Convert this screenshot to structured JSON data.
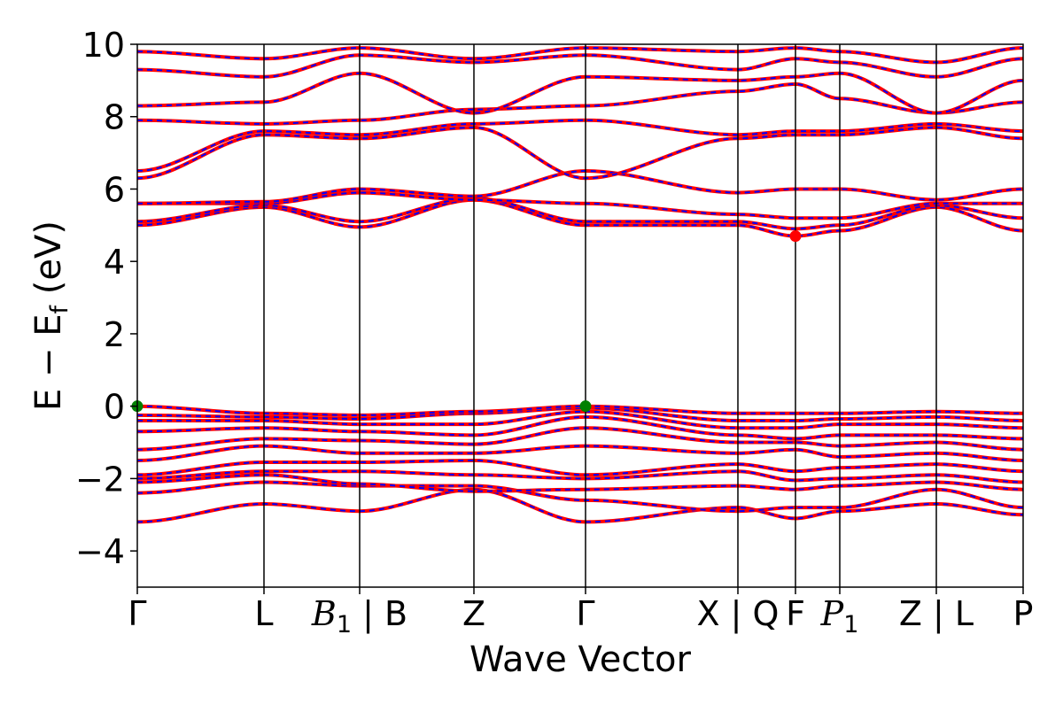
{
  "chart_data": {
    "type": "line",
    "xlabel": "Wave Vector",
    "ylabel": "E − E",
    "ylabel_sub": "f",
    "ylabel_unit": " (eV)",
    "ylim": [
      -5,
      10
    ],
    "yticks": [
      10,
      8,
      6,
      4,
      2,
      0,
      -2,
      -4
    ],
    "ytick_labels": [
      "10",
      "8",
      "6",
      "4",
      "2",
      "0",
      "−2",
      "−4"
    ],
    "xlim": [
      0,
      1
    ],
    "kpoints": [
      {
        "x": 0.0,
        "label": "Γ",
        "italic_base": "",
        "sub": ""
      },
      {
        "x": 0.143,
        "label": "L",
        "italic_base": "",
        "sub": ""
      },
      {
        "x": 0.251,
        "label": "",
        "italic_base": "B",
        "sub": "1",
        "suffix": " | B"
      },
      {
        "x": 0.38,
        "label": "Z",
        "italic_base": "",
        "sub": ""
      },
      {
        "x": 0.506,
        "label": "Γ",
        "italic_base": "",
        "sub": ""
      },
      {
        "x": 0.678,
        "label": "X | Q",
        "italic_base": "",
        "sub": ""
      },
      {
        "x": 0.743,
        "label": "F",
        "italic_base": "",
        "sub": ""
      },
      {
        "x": 0.793,
        "label": "",
        "italic_base": "P",
        "sub": "1",
        "suffix": ""
      },
      {
        "x": 0.902,
        "label": "Z | L",
        "italic_base": "",
        "sub": ""
      },
      {
        "x": 1.0,
        "label": "P",
        "italic_base": "",
        "sub": ""
      }
    ],
    "grid": false,
    "colors": {
      "spin_up": "#ff0000",
      "spin_down": "#0000ff",
      "vbm": "#008000",
      "cbm": "#ff0000",
      "kline": "#000000"
    },
    "series": [
      {
        "values": [
          [
            0.0,
            -3.2
          ],
          [
            0.143,
            -2.7
          ],
          [
            0.251,
            -2.9
          ],
          [
            0.38,
            -2.3
          ],
          [
            0.506,
            -3.2
          ],
          [
            0.678,
            -2.8
          ],
          [
            0.743,
            -3.1
          ],
          [
            0.793,
            -2.9
          ],
          [
            0.902,
            -2.7
          ],
          [
            1.0,
            -3.0
          ]
        ]
      },
      {
        "values": [
          [
            0.0,
            -2.4
          ],
          [
            0.143,
            -2.1
          ],
          [
            0.251,
            -2.2
          ],
          [
            0.38,
            -2.2
          ],
          [
            0.506,
            -2.6
          ],
          [
            0.678,
            -2.9
          ],
          [
            0.743,
            -2.8
          ],
          [
            0.793,
            -2.8
          ],
          [
            0.902,
            -2.3
          ],
          [
            1.0,
            -2.8
          ]
        ]
      },
      {
        "values": [
          [
            0.0,
            -2.1
          ],
          [
            0.143,
            -1.9
          ],
          [
            0.251,
            -2.15
          ],
          [
            0.38,
            -2.35
          ],
          [
            0.506,
            -2.3
          ],
          [
            0.678,
            -2.2
          ],
          [
            0.743,
            -2.3
          ],
          [
            0.793,
            -2.2
          ],
          [
            0.902,
            -2.1
          ],
          [
            1.0,
            -2.3
          ]
        ]
      },
      {
        "values": [
          [
            0.0,
            -2.0
          ],
          [
            0.143,
            -1.8
          ],
          [
            0.251,
            -1.8
          ],
          [
            0.38,
            -1.9
          ],
          [
            0.506,
            -2.0
          ],
          [
            0.678,
            -1.8
          ],
          [
            0.743,
            -2.05
          ],
          [
            0.793,
            -2.0
          ],
          [
            0.902,
            -1.9
          ],
          [
            1.0,
            -2.1
          ]
        ]
      },
      {
        "values": [
          [
            0.0,
            -1.9
          ],
          [
            0.143,
            -1.55
          ],
          [
            0.251,
            -1.55
          ],
          [
            0.38,
            -1.5
          ],
          [
            0.506,
            -1.9
          ],
          [
            0.678,
            -1.6
          ],
          [
            0.743,
            -1.8
          ],
          [
            0.793,
            -1.7
          ],
          [
            0.902,
            -1.6
          ],
          [
            1.0,
            -1.8
          ]
        ]
      },
      {
        "values": [
          [
            0.0,
            -1.5
          ],
          [
            0.143,
            -1.1
          ],
          [
            0.251,
            -1.3
          ],
          [
            0.38,
            -1.3
          ],
          [
            0.506,
            -1.1
          ],
          [
            0.678,
            -1.3
          ],
          [
            0.743,
            -1.2
          ],
          [
            0.793,
            -1.4
          ],
          [
            0.902,
            -1.3
          ],
          [
            1.0,
            -1.5
          ]
        ]
      },
      {
        "values": [
          [
            0.0,
            -1.2
          ],
          [
            0.143,
            -0.9
          ],
          [
            0.251,
            -0.95
          ],
          [
            0.38,
            -1.05
          ],
          [
            0.506,
            -0.6
          ],
          [
            0.678,
            -1.0
          ],
          [
            0.743,
            -1.0
          ],
          [
            0.793,
            -1.1
          ],
          [
            0.902,
            -1.0
          ],
          [
            1.0,
            -1.2
          ]
        ]
      },
      {
        "values": [
          [
            0.0,
            -0.7
          ],
          [
            0.143,
            -0.6
          ],
          [
            0.251,
            -0.7
          ],
          [
            0.38,
            -0.8
          ],
          [
            0.506,
            -0.3
          ],
          [
            0.678,
            -0.8
          ],
          [
            0.743,
            -0.9
          ],
          [
            0.793,
            -0.8
          ],
          [
            0.902,
            -0.8
          ],
          [
            1.0,
            -0.9
          ]
        ]
      },
      {
        "values": [
          [
            0.0,
            -0.4
          ],
          [
            0.143,
            -0.4
          ],
          [
            0.251,
            -0.5
          ],
          [
            0.38,
            -0.5
          ],
          [
            0.506,
            -0.15
          ],
          [
            0.678,
            -0.6
          ],
          [
            0.743,
            -0.6
          ],
          [
            0.793,
            -0.5
          ],
          [
            0.902,
            -0.5
          ],
          [
            1.0,
            -0.6
          ]
        ]
      },
      {
        "values": [
          [
            0.0,
            -0.25
          ],
          [
            0.143,
            -0.3
          ],
          [
            0.251,
            -0.35
          ],
          [
            0.38,
            -0.2
          ],
          [
            0.506,
            -0.05
          ],
          [
            0.678,
            -0.4
          ],
          [
            0.743,
            -0.4
          ],
          [
            0.793,
            -0.35
          ],
          [
            0.902,
            -0.3
          ],
          [
            1.0,
            -0.4
          ]
        ]
      },
      {
        "values": [
          [
            0.0,
            0.0
          ],
          [
            0.143,
            -0.2
          ],
          [
            0.251,
            -0.25
          ],
          [
            0.38,
            -0.15
          ],
          [
            0.506,
            0.0
          ],
          [
            0.678,
            -0.2
          ],
          [
            0.743,
            -0.2
          ],
          [
            0.793,
            -0.2
          ],
          [
            0.902,
            -0.15
          ],
          [
            1.0,
            -0.2
          ]
        ]
      },
      {
        "values": [
          [
            0.0,
            5.0
          ],
          [
            0.143,
            5.5
          ],
          [
            0.251,
            4.95
          ],
          [
            0.38,
            5.7
          ],
          [
            0.506,
            5.0
          ],
          [
            0.678,
            5.0
          ],
          [
            0.743,
            4.7
          ],
          [
            0.793,
            4.85
          ],
          [
            0.902,
            5.5
          ],
          [
            1.0,
            4.85
          ]
        ]
      },
      {
        "values": [
          [
            0.0,
            5.1
          ],
          [
            0.143,
            5.55
          ],
          [
            0.251,
            5.1
          ],
          [
            0.38,
            5.75
          ],
          [
            0.506,
            5.1
          ],
          [
            0.678,
            5.1
          ],
          [
            0.743,
            4.9
          ],
          [
            0.793,
            5.0
          ],
          [
            0.902,
            5.55
          ],
          [
            1.0,
            5.2
          ]
        ]
      },
      {
        "values": [
          [
            0.0,
            5.6
          ],
          [
            0.143,
            5.6
          ],
          [
            0.251,
            5.9
          ],
          [
            0.38,
            5.7
          ],
          [
            0.506,
            5.6
          ],
          [
            0.678,
            5.3
          ],
          [
            0.743,
            5.2
          ],
          [
            0.793,
            5.2
          ],
          [
            0.902,
            5.6
          ],
          [
            1.0,
            5.6
          ]
        ]
      },
      {
        "values": [
          [
            0.0,
            5.6
          ],
          [
            0.143,
            5.65
          ],
          [
            0.251,
            6.0
          ],
          [
            0.38,
            5.8
          ],
          [
            0.506,
            6.5
          ],
          [
            0.678,
            5.9
          ],
          [
            0.743,
            6.0
          ],
          [
            0.793,
            6.0
          ],
          [
            0.902,
            5.7
          ],
          [
            1.0,
            6.0
          ]
        ]
      },
      {
        "values": [
          [
            0.0,
            6.3
          ],
          [
            0.143,
            7.5
          ],
          [
            0.251,
            7.4
          ],
          [
            0.38,
            7.7
          ],
          [
            0.506,
            6.3
          ],
          [
            0.678,
            7.4
          ],
          [
            0.743,
            7.5
          ],
          [
            0.793,
            7.5
          ],
          [
            0.902,
            7.7
          ],
          [
            1.0,
            7.4
          ]
        ]
      },
      {
        "values": [
          [
            0.0,
            6.5
          ],
          [
            0.143,
            7.6
          ],
          [
            0.251,
            7.5
          ],
          [
            0.38,
            7.8
          ],
          [
            0.506,
            7.9
          ],
          [
            0.678,
            7.5
          ],
          [
            0.743,
            7.6
          ],
          [
            0.793,
            7.6
          ],
          [
            0.902,
            7.8
          ],
          [
            1.0,
            7.6
          ]
        ]
      },
      {
        "values": [
          [
            0.0,
            7.9
          ],
          [
            0.143,
            7.8
          ],
          [
            0.251,
            7.9
          ],
          [
            0.38,
            8.2
          ],
          [
            0.506,
            8.3
          ],
          [
            0.678,
            8.7
          ],
          [
            0.743,
            8.9
          ],
          [
            0.793,
            8.5
          ],
          [
            0.902,
            8.1
          ],
          [
            1.0,
            8.4
          ]
        ]
      },
      {
        "values": [
          [
            0.0,
            8.3
          ],
          [
            0.143,
            8.4
          ],
          [
            0.251,
            9.2
          ],
          [
            0.38,
            8.1
          ],
          [
            0.506,
            9.1
          ],
          [
            0.678,
            9.0
          ],
          [
            0.743,
            9.1
          ],
          [
            0.793,
            9.2
          ],
          [
            0.902,
            8.1
          ],
          [
            1.0,
            9.0
          ]
        ]
      },
      {
        "values": [
          [
            0.0,
            9.3
          ],
          [
            0.143,
            9.1
          ],
          [
            0.251,
            9.7
          ],
          [
            0.38,
            9.5
          ],
          [
            0.506,
            9.7
          ],
          [
            0.678,
            9.3
          ],
          [
            0.743,
            9.6
          ],
          [
            0.793,
            9.5
          ],
          [
            0.902,
            9.1
          ],
          [
            1.0,
            9.6
          ]
        ]
      },
      {
        "values": [
          [
            0.0,
            9.8
          ],
          [
            0.143,
            9.6
          ],
          [
            0.251,
            9.9
          ],
          [
            0.38,
            9.6
          ],
          [
            0.506,
            9.9
          ],
          [
            0.678,
            9.8
          ],
          [
            0.743,
            9.9
          ],
          [
            0.793,
            9.8
          ],
          [
            0.902,
            9.5
          ],
          [
            1.0,
            9.9
          ]
        ]
      }
    ],
    "extrema": [
      {
        "kind": "vbm",
        "x": 0.0,
        "y": 0.0
      },
      {
        "kind": "vbm",
        "x": 0.506,
        "y": 0.0
      },
      {
        "kind": "cbm",
        "x": 0.743,
        "y": 4.7
      }
    ]
  }
}
